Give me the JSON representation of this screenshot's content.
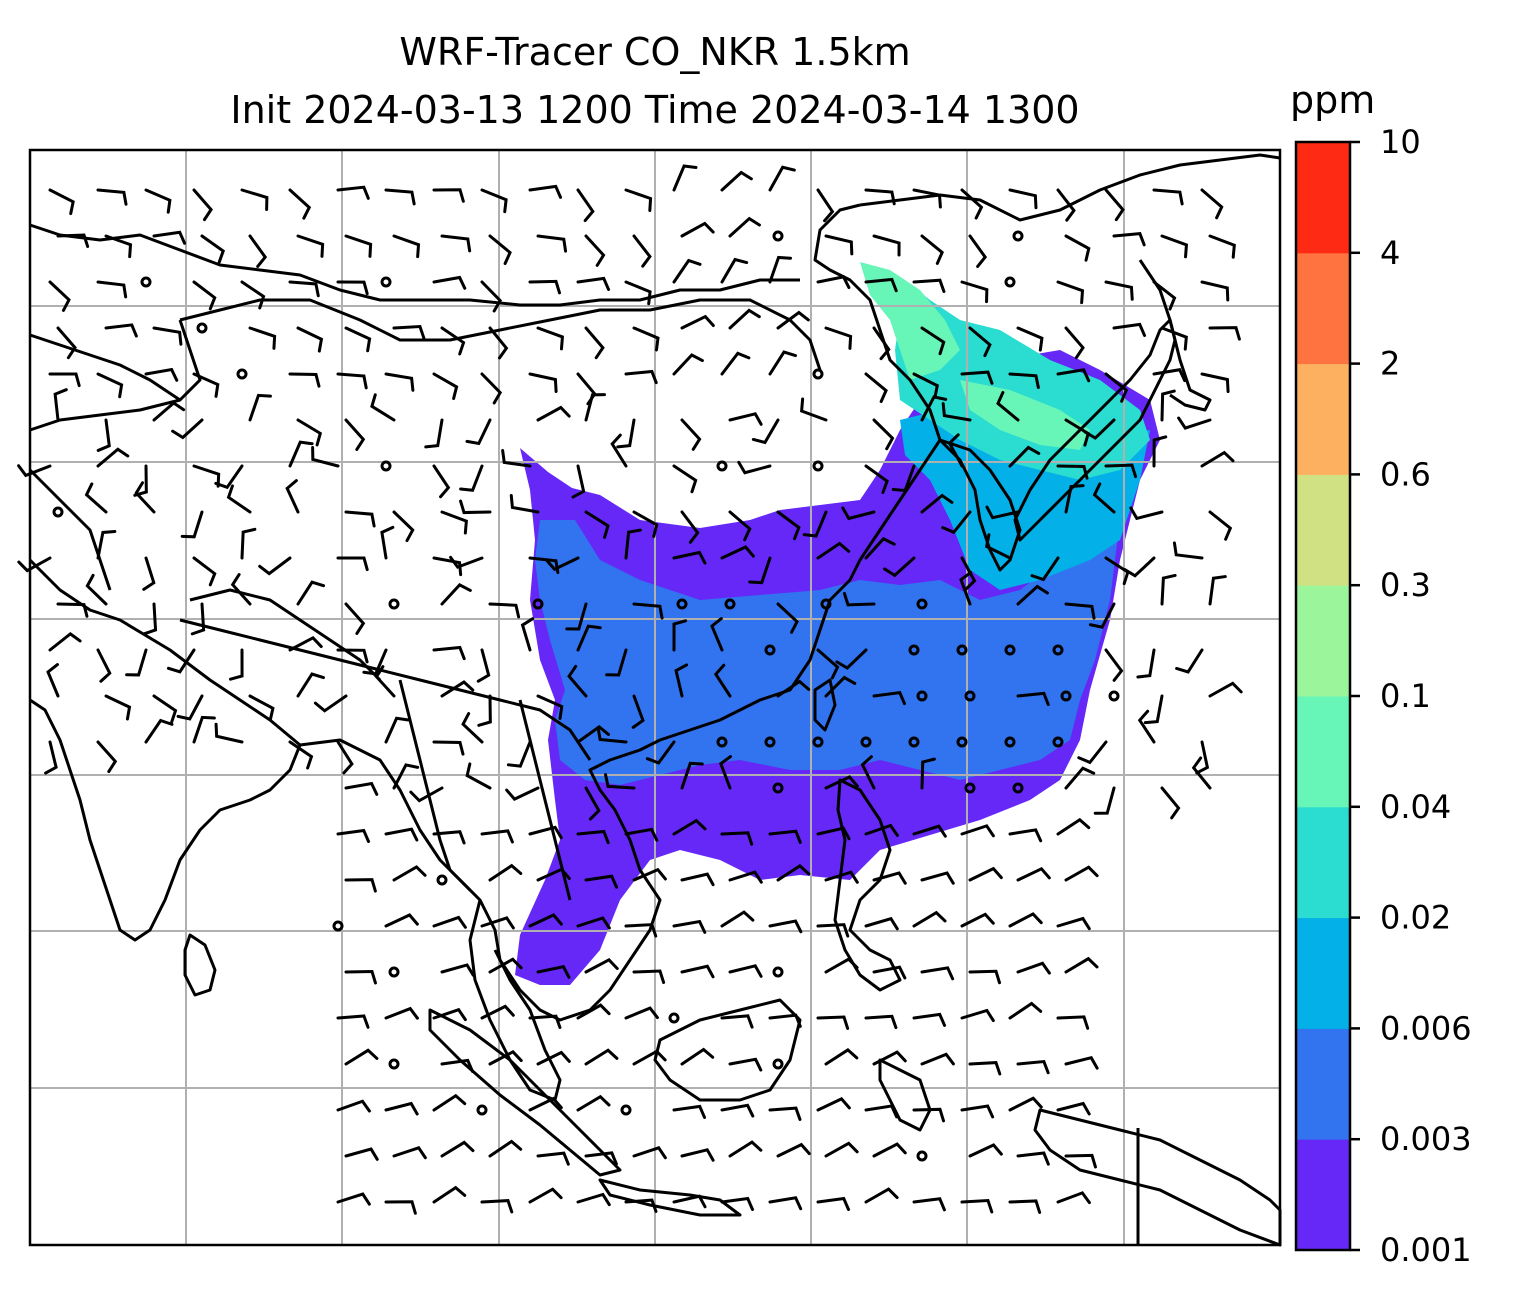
{
  "title": {
    "line1": "WRF-Tracer CO_NKR 1.5km",
    "line2": "Init 2024-03-13 1200 Time 2024-03-14 1300"
  },
  "colorbar": {
    "unit": "ppm",
    "levels": [
      "0.001",
      "0.003",
      "0.006",
      "0.02",
      "0.04",
      "0.1",
      "0.3",
      "0.6",
      "2",
      "4",
      "10"
    ],
    "colors": [
      "#6528f7",
      "#3273f0",
      "#04b0e8",
      "#2bdcd0",
      "#67f5b8",
      "#9bf59a",
      "#d0e184",
      "#fdb060",
      "#ff7341",
      "#ff2a14"
    ]
  },
  "map": {
    "field": "CO_NKR",
    "gridlines": true,
    "frame_color": "#000000",
    "grid_color": "#b0b0b0"
  }
}
